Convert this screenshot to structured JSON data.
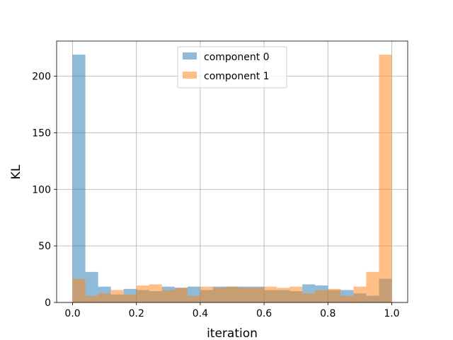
{
  "chart_data": {
    "type": "bar",
    "subtype": "histogram",
    "xlabel": "iteration",
    "ylabel": "KL",
    "xlim": [
      -0.05,
      1.05
    ],
    "ylim": [
      0,
      231
    ],
    "xticks": [
      "0.0",
      "0.2",
      "0.4",
      "0.6",
      "0.8",
      "1.0"
    ],
    "xtick_values": [
      0.0,
      0.2,
      0.4,
      0.6,
      0.8,
      1.0
    ],
    "yticks": [
      "0",
      "50",
      "100",
      "150",
      "200"
    ],
    "ytick_values": [
      0,
      50,
      100,
      150,
      200
    ],
    "grid": true,
    "legend_position": "upper center",
    "bin_edges": [
      0.0,
      0.04,
      0.08,
      0.12,
      0.16,
      0.2,
      0.24,
      0.28,
      0.32,
      0.36,
      0.4,
      0.44,
      0.48,
      0.52,
      0.56,
      0.6,
      0.64,
      0.68,
      0.72,
      0.76,
      0.8,
      0.84,
      0.88,
      0.92,
      0.96,
      1.0
    ],
    "series": [
      {
        "name": "component 0",
        "color": "#1f77b4",
        "opacity": 0.5,
        "values": [
          219,
          27,
          14,
          7,
          12,
          11,
          10,
          14,
          13,
          14,
          11,
          14,
          14,
          14,
          14,
          11,
          11,
          10,
          16,
          15,
          11,
          11,
          8,
          6,
          21
        ]
      },
      {
        "name": "component 1",
        "color": "#ff7f0e",
        "opacity": 0.5,
        "values": [
          21,
          6,
          8,
          11,
          7,
          15,
          16,
          11,
          13,
          6,
          14,
          13,
          14,
          13,
          13,
          14,
          13,
          14,
          8,
          11,
          12,
          6,
          14,
          27,
          219
        ]
      }
    ]
  }
}
